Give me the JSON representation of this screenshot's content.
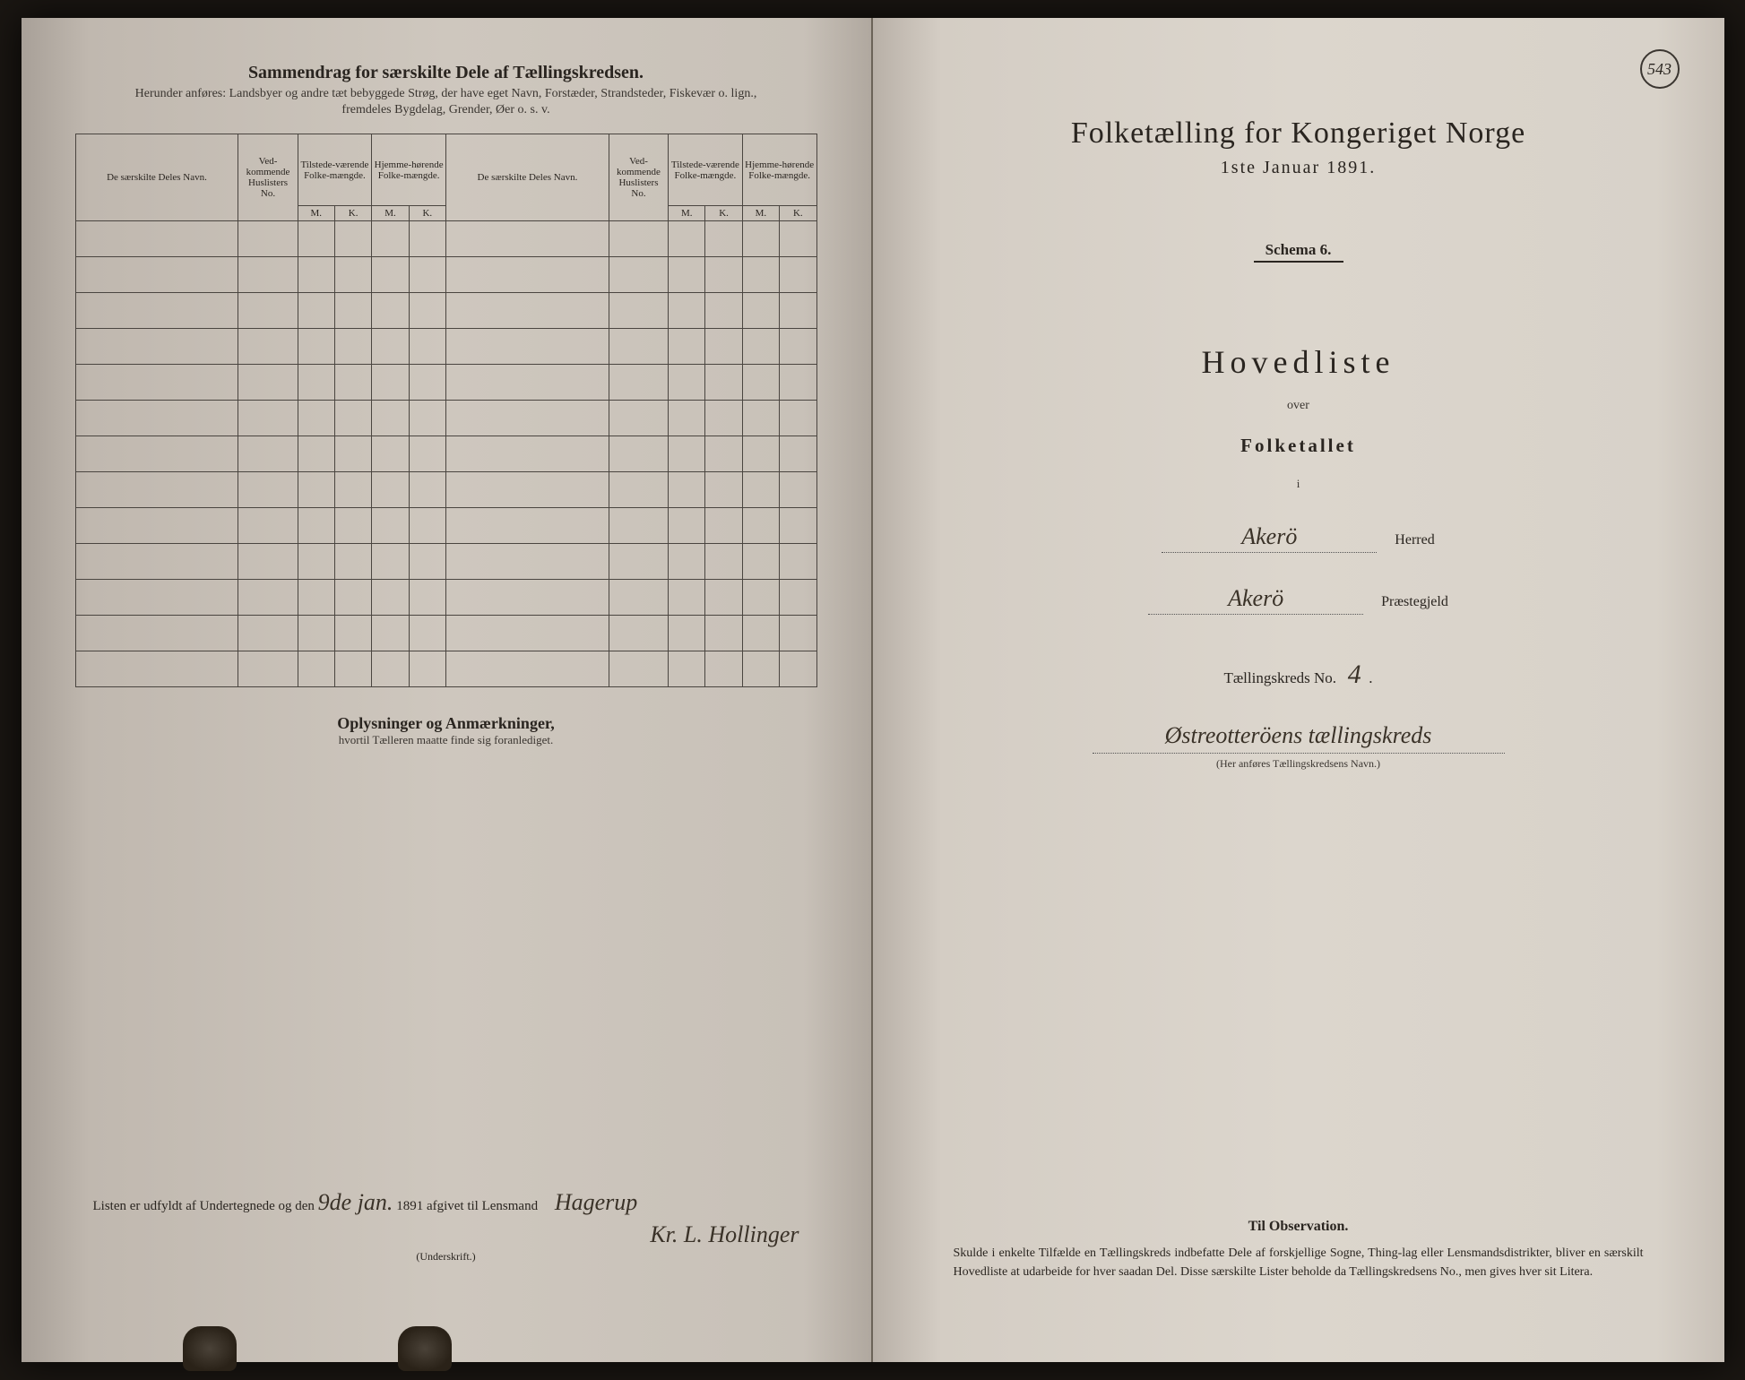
{
  "colors": {
    "ink": "#2a2520",
    "paper_left": "#cec7be",
    "paper_right": "#dcd6cd",
    "border": "#4a4540"
  },
  "page_number": "543",
  "left": {
    "title": "Sammendrag for særskilte Dele af Tællingskredsen.",
    "subtitle1": "Herunder anføres: Landsbyer og andre tæt bebyggede Strøg, der have eget Navn, Forstæder, Strandsteder, Fiskevær o. lign.,",
    "subtitle2": "fremdeles Bygdelag, Grender, Øer o. s. v.",
    "table": {
      "col_name": "De særskilte Deles Navn.",
      "col_huslisters": "Ved-kommende Huslisters No.",
      "col_tilstede": "Tilstede-værende Folke-mængde.",
      "col_hjemme": "Hjemme-hørende Folke-mængde.",
      "m": "M.",
      "k": "K.",
      "row_count": 13
    },
    "oplysninger": "Oplysninger og Anmærkninger,",
    "oplysninger_sub": "hvortil Tælleren maatte finde sig foranlediget.",
    "signature": {
      "prefix": "Listen er udfyldt af Undertegnede og den",
      "date_hand": "9de jan.",
      "year": "1891 afgivet til Lensmand",
      "lensmand": "Hagerup",
      "name": "Kr. L. Hollinger",
      "label": "(Underskrift.)"
    }
  },
  "right": {
    "main_title": "Folketælling for Kongeriget Norge",
    "date": "1ste Januar 1891.",
    "schema": "Schema 6.",
    "hovedliste": "Hovedliste",
    "over": "over",
    "folketallet": "Folketallet",
    "i": "i",
    "herred_value": "Akerö",
    "herred_label": "Herred",
    "praestegjeld_value": "Akerö",
    "praestegjeld_label": "Præstegjeld",
    "taellingskreds_label": "Tællingskreds No.",
    "taellingskreds_no": "4",
    "kreds_name": "Østreotteröens tællingskreds",
    "kreds_note": "(Her anføres Tællingskredsens Navn.)",
    "observation": {
      "title": "Til Observation.",
      "body": "Skulde i enkelte Tilfælde en Tællingskreds indbefatte Dele af forskjellige Sogne, Thing-lag eller Lensmandsdistrikter, bliver en særskilt Hovedliste at udarbeide for hver saadan Del. Disse særskilte Lister beholde da Tællingskredsens No., men gives hver sit Litera."
    }
  }
}
